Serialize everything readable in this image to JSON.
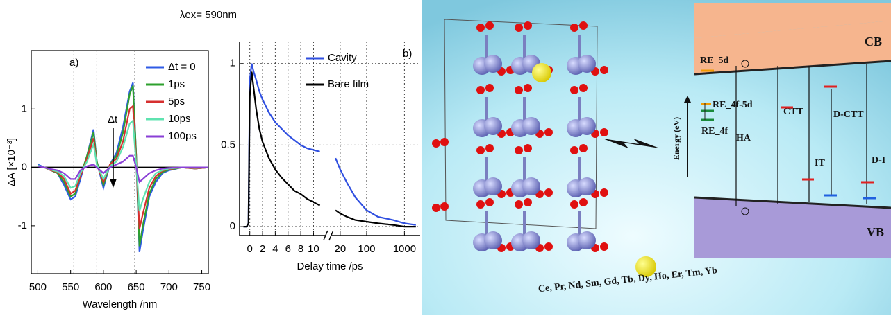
{
  "figure_label": "λex= 590nm",
  "chart_data": [
    {
      "type": "line",
      "panel_label": "a)",
      "annotation": "Δt",
      "x_label": "Wavelength /nm",
      "y_label": "ΔA [×10⁻³]",
      "x": [
        500,
        510,
        520,
        530,
        540,
        550,
        557,
        565,
        575,
        585,
        590,
        600,
        610,
        620,
        630,
        640,
        645,
        650,
        655,
        660,
        670,
        680,
        690,
        700,
        720,
        740,
        760
      ],
      "series": [
        {
          "name": "Δt = 0",
          "color": "#2f5be6",
          "values": [
            0.05,
            0,
            -0.05,
            -0.1,
            -0.3,
            -0.55,
            -0.5,
            -0.2,
            0.2,
            0.65,
            0.1,
            -0.35,
            0.05,
            0.25,
            0.7,
            1.3,
            1.45,
            0.2,
            -1.45,
            -1.1,
            -0.5,
            -0.25,
            -0.1,
            -0.05,
            0,
            -0.02,
            0
          ]
        },
        {
          "name": "1ps",
          "color": "#2ea02e",
          "values": [
            0.03,
            0,
            -0.05,
            -0.1,
            -0.25,
            -0.5,
            -0.45,
            -0.15,
            0.2,
            0.6,
            0.1,
            -0.3,
            0.05,
            0.2,
            0.6,
            1.25,
            1.4,
            0.2,
            -1.35,
            -1.0,
            -0.45,
            -0.2,
            -0.08,
            -0.04,
            0,
            -0.02,
            0
          ]
        },
        {
          "name": "5ps",
          "color": "#d62f2f",
          "values": [
            0.03,
            0,
            -0.05,
            -0.08,
            -0.2,
            -0.45,
            -0.4,
            -0.15,
            0.15,
            0.5,
            0.05,
            -0.25,
            0.05,
            0.15,
            0.45,
            1.0,
            1.05,
            0.1,
            -1.05,
            -0.8,
            -0.35,
            -0.15,
            -0.06,
            -0.03,
            0,
            -0.02,
            0
          ]
        },
        {
          "name": "10ps",
          "color": "#5fe3b0",
          "values": [
            0.03,
            0,
            -0.04,
            -0.07,
            -0.15,
            -0.35,
            -0.32,
            -0.1,
            0.1,
            0.4,
            0.05,
            -0.2,
            0.02,
            0.1,
            0.35,
            0.75,
            0.8,
            0.05,
            -0.75,
            -0.55,
            -0.25,
            -0.1,
            -0.05,
            -0.02,
            0,
            -0.01,
            0
          ]
        },
        {
          "name": "100ps",
          "color": "#8a3fd6",
          "values": [
            0.02,
            0,
            -0.03,
            -0.05,
            -0.1,
            -0.2,
            -0.2,
            -0.05,
            0.02,
            0.05,
            0,
            -0.1,
            0,
            0.05,
            0.1,
            0.2,
            0.2,
            0,
            -0.25,
            -0.2,
            -0.1,
            -0.05,
            -0.02,
            -0.01,
            0,
            0,
            0
          ]
        }
      ],
      "xlim": [
        490,
        760
      ],
      "ylim": [
        -1.82,
        2.0
      ],
      "xticks": [
        500,
        550,
        600,
        650,
        700,
        750
      ],
      "yticks": [
        -1,
        0,
        1
      ],
      "vlines": [
        555,
        590,
        648
      ],
      "hline": 0,
      "legend": "upper right"
    },
    {
      "type": "line",
      "panel_label": "b)",
      "x_label": "Delay time /ps",
      "x": [
        -1,
        -0.5,
        -0.2,
        0,
        0.3,
        0.6,
        1,
        1.5,
        2,
        3,
        4,
        5,
        6,
        7,
        8,
        9,
        10,
        11,
        12,
        15,
        20,
        30,
        50,
        100,
        200,
        500,
        1000,
        2000
      ],
      "series": [
        {
          "name": "Cavity",
          "color": "#2f4fe0",
          "values": [
            0,
            0,
            0.02,
            0.9,
            1.0,
            0.95,
            0.9,
            0.83,
            0.78,
            0.7,
            0.64,
            0.6,
            0.56,
            0.53,
            0.5,
            0.48,
            0.47,
            0.46,
            null,
            0.42,
            0.35,
            0.27,
            0.18,
            0.1,
            0.06,
            0.04,
            0.02,
            0.01
          ]
        },
        {
          "name": "Bare film",
          "color": "#000000",
          "values": [
            0,
            0,
            0.02,
            0.8,
            0.95,
            0.85,
            0.72,
            0.6,
            0.52,
            0.42,
            0.35,
            0.3,
            0.26,
            0.22,
            0.2,
            0.17,
            0.15,
            0.13,
            null,
            0.1,
            0.08,
            0.06,
            0.04,
            0.03,
            0.02,
            0.01,
            0,
            0
          ]
        }
      ],
      "segments": [
        {
          "xlim": [
            -1.6,
            12
          ],
          "xticks": [
            0,
            2,
            4,
            6,
            8,
            10
          ]
        },
        {
          "xlim": [
            12,
            2600
          ],
          "log": true,
          "xticks": [
            20,
            100,
            1000
          ]
        }
      ],
      "ylim": [
        -0.055,
        1.135
      ],
      "yticks": [
        0,
        0.5,
        1
      ],
      "grid": true,
      "legend": "upper left"
    }
  ],
  "diagram": {
    "cb": "CB",
    "vb": "VB",
    "re_5d": "RE_5d",
    "re_4f_5d": "RE_4f-5d",
    "re_4f": "RE_4f",
    "energy": "Energy (eV)",
    "ha": "HA",
    "ctt": "CTT",
    "it": "IT",
    "d_ctt": "D-CTT",
    "d_it": "D-I",
    "elements": "Ce, Pr, Nd, Sm, Gd, Tb, Dy, Ho, Er, Tm, Yb"
  }
}
